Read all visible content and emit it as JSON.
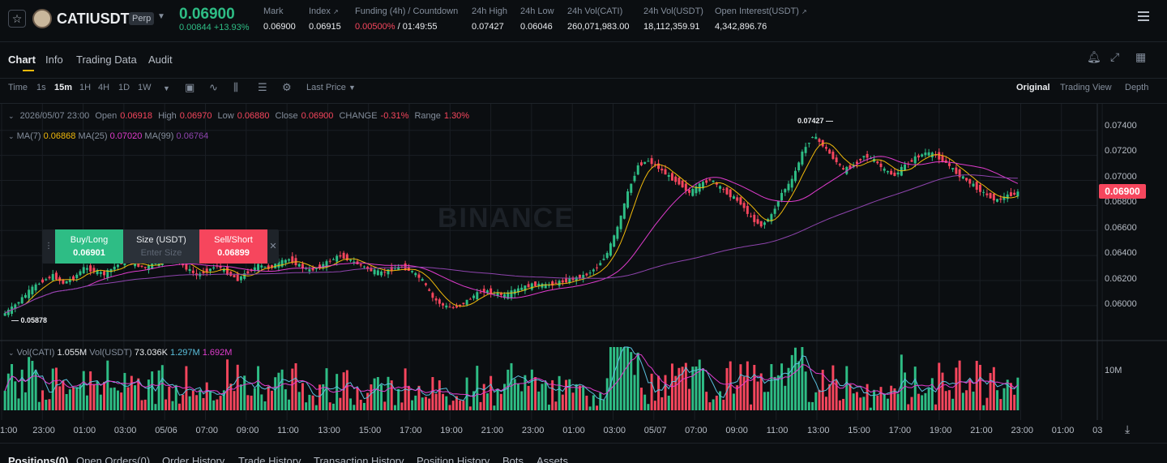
{
  "header": {
    "symbol": "CATIUSDT",
    "badge": "Perp",
    "last_price": "0.06900",
    "change": "0.00844 +13.93%",
    "stats": [
      {
        "label": "Mark",
        "value": "0.06900"
      },
      {
        "label": "Index",
        "value": "0.06915"
      },
      {
        "label": "Funding (4h) / Countdown",
        "value_funding": "0.00500%",
        "value_countdown": "/ 01:49:55"
      },
      {
        "label": "24h High",
        "value": "0.07427"
      },
      {
        "label": "24h Low",
        "value": "0.06046"
      },
      {
        "label": "24h Vol(CATI)",
        "value": "260,071,983.00"
      },
      {
        "label": "24h Vol(USDT)",
        "value": "18,112,359.91"
      },
      {
        "label": "Open Interest(USDT)",
        "value": "4,342,896.76"
      }
    ]
  },
  "tabs": [
    "Chart",
    "Info",
    "Trading Data",
    "Audit"
  ],
  "toolbar": {
    "intervals": [
      "Time",
      "1s",
      "15m",
      "1H",
      "4H",
      "1D",
      "1W"
    ],
    "active_interval": "15m",
    "price_type": "Last Price",
    "views": [
      "Original",
      "Trading View",
      "Depth"
    ],
    "active_view": "Original"
  },
  "ohlc": {
    "date": "2026/05/07 23:00",
    "open_label": "Open",
    "open": "0.06918",
    "high_label": "High",
    "high": "0.06970",
    "low_label": "Low",
    "low": "0.06880",
    "close_label": "Close",
    "close": "0.06900",
    "change_label": "CHANGE",
    "change": "-0.31%",
    "range_label": "Range",
    "range": "1.30%"
  },
  "ma": {
    "ma7_label": "MA(7)",
    "ma7": "0.06868",
    "ma25_label": "MA(25)",
    "ma25": "0.07020",
    "ma99_label": "MA(99)",
    "ma99": "0.06764"
  },
  "volume": {
    "cati_label": "Vol(CATI)",
    "cati": "1.055M",
    "usdt_label": "Vol(USDT)",
    "usdt": "73.036K",
    "ma1": "1.297M",
    "ma2": "1.692M",
    "axis_label": "10M"
  },
  "price_axis": [
    "0.07400",
    "0.07200",
    "0.07000",
    "0.06800",
    "0.06600",
    "0.06400",
    "0.06200",
    "0.06000"
  ],
  "current_price_tag": "0.06900",
  "high_marker": "0.07427",
  "low_marker": "0.05878",
  "watermark": "BINANCE",
  "trade_widget": {
    "buy_label": "Buy/Long",
    "buy_price": "0.06901",
    "size_label": "Size (USDT)",
    "size_placeholder": "Enter Size",
    "sell_label": "Sell/Short",
    "sell_price": "0.06899"
  },
  "time_axis": [
    "1:00",
    "23:00",
    "01:00",
    "03:00",
    "05/06",
    "07:00",
    "09:00",
    "11:00",
    "13:00",
    "15:00",
    "17:00",
    "19:00",
    "21:00",
    "23:00",
    "01:00",
    "03:00",
    "05/07",
    "07:00",
    "09:00",
    "11:00",
    "13:00",
    "15:00",
    "17:00",
    "19:00",
    "21:00",
    "23:00",
    "01:00",
    "03"
  ],
  "bottom_tabs": [
    "Positions(0)",
    "Open Orders(0)",
    "Order History",
    "Trade History",
    "Transaction History",
    "Position History",
    "Bots",
    "Assets"
  ],
  "colors": {
    "up": "#2ebd85",
    "down": "#f6465d",
    "ma7": "#f0b90b",
    "ma25": "#e13cce",
    "ma99": "#8e44ad",
    "accent": "#f0b90b"
  },
  "chart_data": {
    "type": "candlestick",
    "title": "",
    "ylim": [
      0.0587,
      0.0745
    ],
    "y_ticks": [
      0.06,
      0.062,
      0.064,
      0.066,
      0.068,
      0.07,
      0.072,
      0.074
    ],
    "close_series": [
      0.0592,
      0.0598,
      0.0606,
      0.0614,
      0.062,
      0.0624,
      0.0618,
      0.0622,
      0.063,
      0.0628,
      0.0625,
      0.0631,
      0.0636,
      0.0633,
      0.063,
      0.0634,
      0.0638,
      0.0636,
      0.063,
      0.0624,
      0.0628,
      0.0632,
      0.0626,
      0.0621,
      0.0627,
      0.0632,
      0.063,
      0.0634,
      0.0637,
      0.0632,
      0.0628,
      0.0631,
      0.0636,
      0.064,
      0.0636,
      0.0632,
      0.0628,
      0.0626,
      0.0629,
      0.0631,
      0.0627,
      0.062,
      0.0606,
      0.06,
      0.0598,
      0.0602,
      0.0608,
      0.0612,
      0.061,
      0.0608,
      0.0612,
      0.0615,
      0.0617,
      0.0616,
      0.0618,
      0.062,
      0.0622,
      0.0625,
      0.0631,
      0.0642,
      0.0662,
      0.069,
      0.0712,
      0.0716,
      0.071,
      0.0703,
      0.0698,
      0.069,
      0.0696,
      0.0701,
      0.0694,
      0.0688,
      0.0682,
      0.067,
      0.0664,
      0.0672,
      0.069,
      0.07,
      0.0722,
      0.0736,
      0.0728,
      0.0718,
      0.0708,
      0.0712,
      0.072,
      0.0716,
      0.0708,
      0.0704,
      0.0712,
      0.0718,
      0.0722,
      0.072,
      0.0714,
      0.0706,
      0.07,
      0.0694,
      0.0688,
      0.0684,
      0.0688,
      0.069
    ]
  }
}
